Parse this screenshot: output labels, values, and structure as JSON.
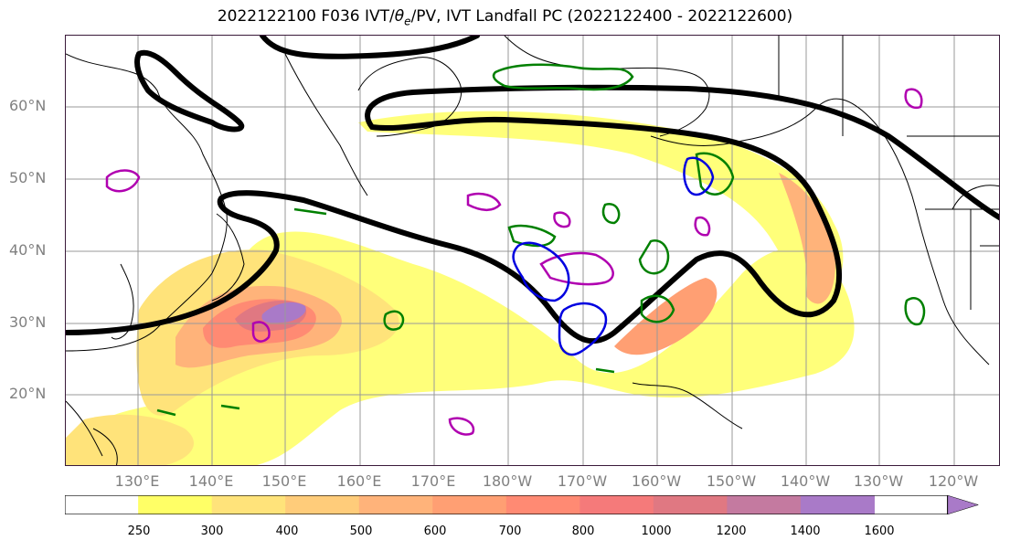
{
  "title_prefix": "2022122100 F036 IVT/",
  "title_theta": "θ",
  "title_theta_sub": "e",
  "title_suffix": "/PV, IVT Landfall PC (2022122400 - 2022122600)",
  "lat_labels": [
    "60°N",
    "50°N",
    "40°N",
    "30°N",
    "20°N"
  ],
  "lon_labels": [
    "130°E",
    "140°E",
    "150°E",
    "160°E",
    "170°E",
    "180°W",
    "170°W",
    "160°W",
    "150°W",
    "140°W",
    "130°W",
    "120°W"
  ],
  "colorbar": {
    "ticks": [
      "250",
      "300",
      "400",
      "500",
      "600",
      "700",
      "800",
      "1000",
      "1200",
      "1400",
      "1600"
    ],
    "colors": [
      "#ffff66",
      "#ffe37a",
      "#ffcc7a",
      "#ffb37a",
      "#ff9f73",
      "#ff8a73",
      "#f57a7a",
      "#e07882",
      "#c47aa0",
      "#a97ac8"
    ]
  },
  "map": {
    "lat_range": [
      10,
      70
    ],
    "lon_range": [
      120,
      250
    ],
    "contour_colors": {
      "ivt_landfall_pc": "#000000",
      "theta_e": "#008000",
      "pv_positive": "#b000b0",
      "pv_negative": "#0000e0"
    }
  }
}
